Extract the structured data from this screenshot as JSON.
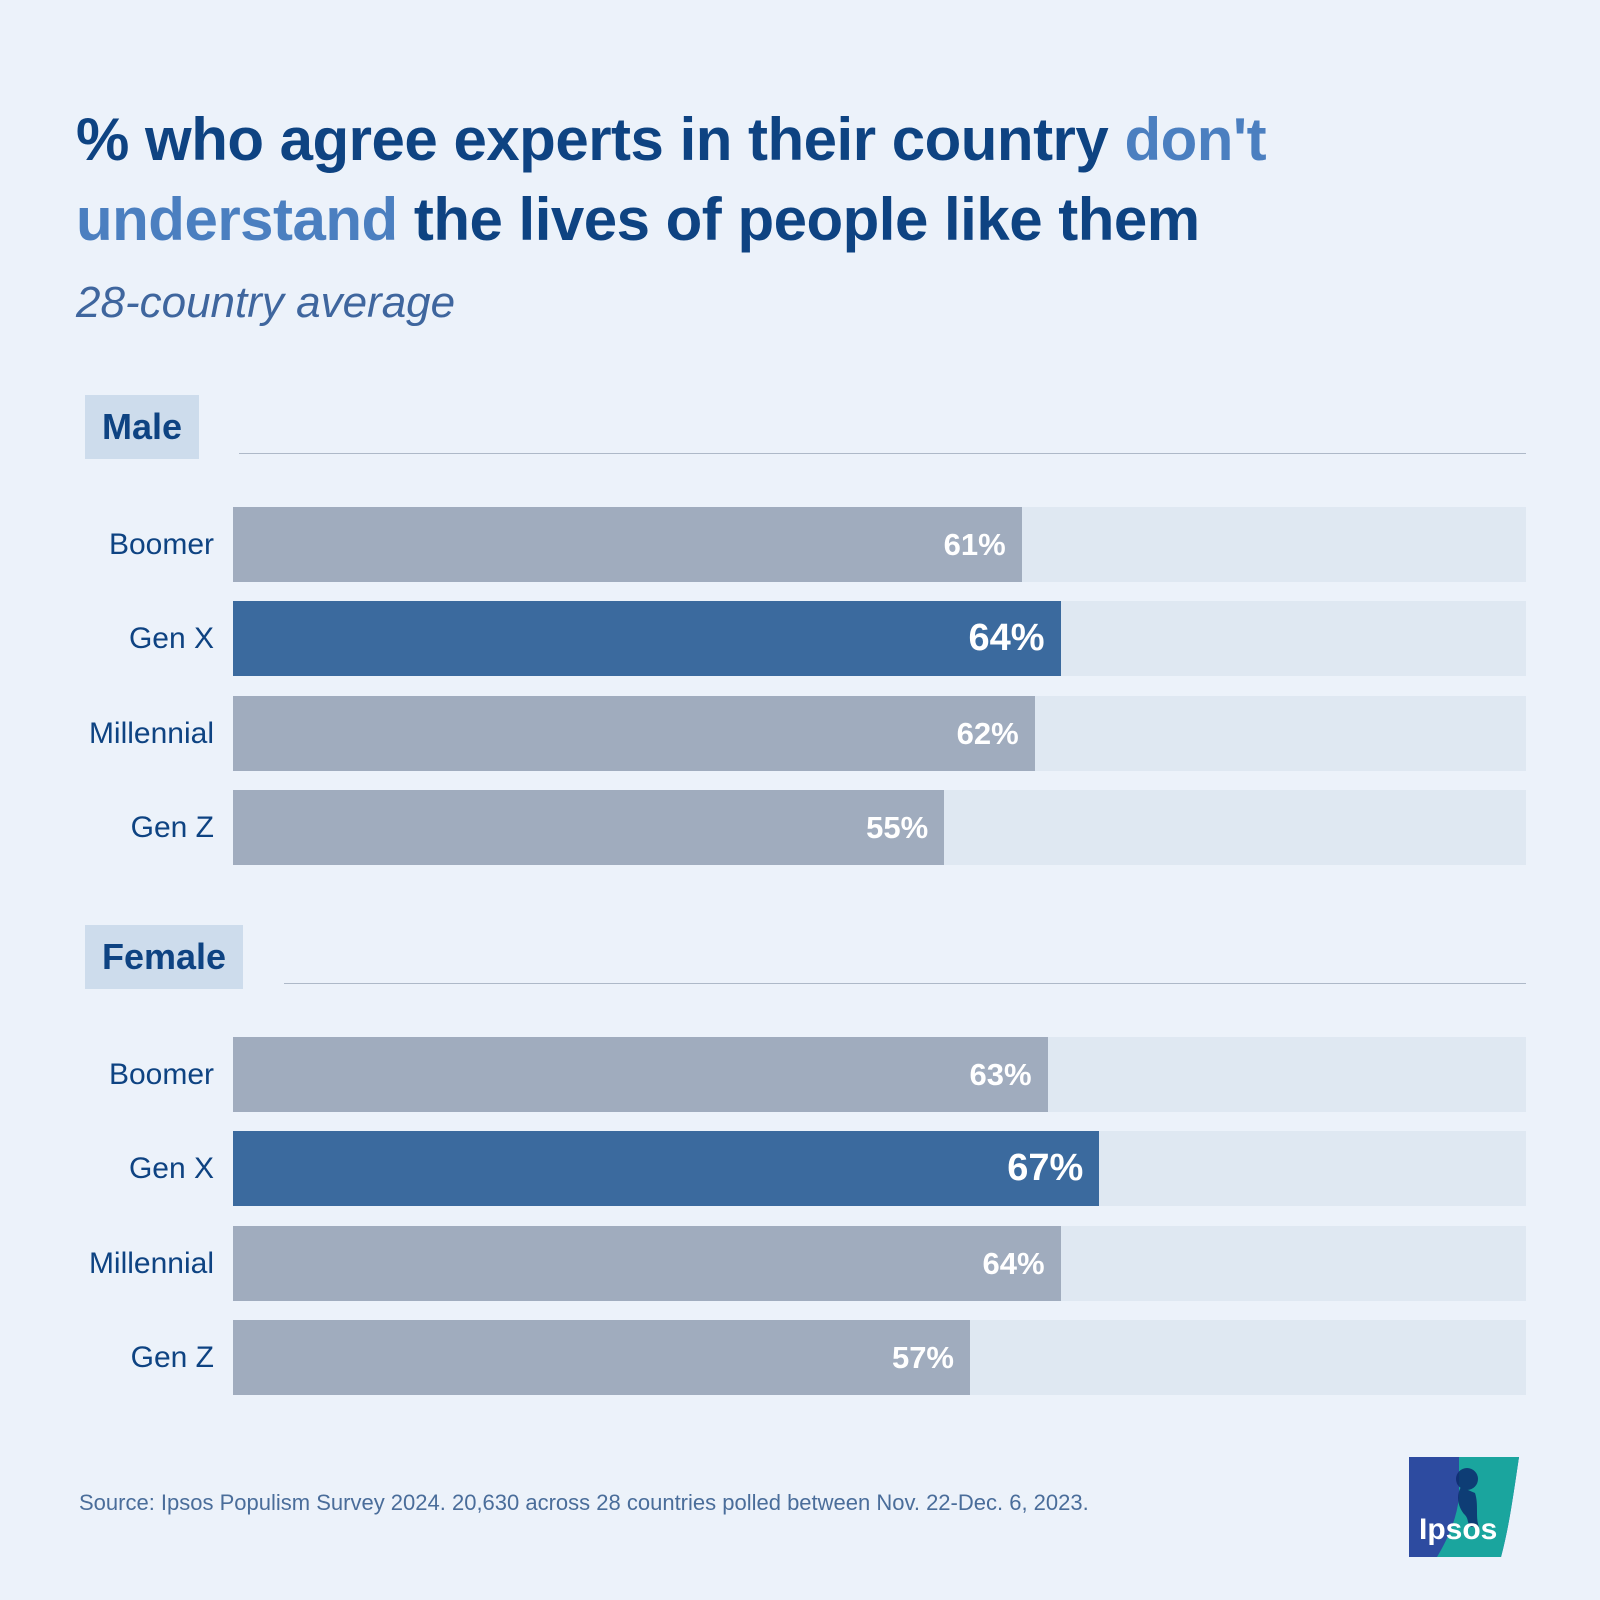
{
  "title": {
    "part1": "% who agree experts in their country ",
    "highlight": "don't understand",
    "part2": " the lives of people like them"
  },
  "subtitle": "28-country average",
  "colors": {
    "title": "#0e4382",
    "highlight": "#4b7fc0",
    "bar_default": "#a0acbe",
    "bar_highlight": "#3b6a9e",
    "track": "#dfe8f2",
    "background": "#ecf2fa"
  },
  "chart_data": {
    "type": "bar",
    "orientation": "horizontal",
    "xlim": [
      0,
      100
    ],
    "groups": [
      {
        "name": "Male",
        "categories": [
          "Boomer",
          "Gen X",
          "Millennial",
          "Gen Z"
        ],
        "values": [
          61,
          64,
          62,
          55
        ],
        "labels": [
          "61%",
          "64%",
          "62%",
          "55%"
        ],
        "highlight": [
          false,
          true,
          false,
          false
        ]
      },
      {
        "name": "Female",
        "categories": [
          "Boomer",
          "Gen X",
          "Millennial",
          "Gen Z"
        ],
        "values": [
          63,
          67,
          64,
          57
        ],
        "labels": [
          "63%",
          "67%",
          "64%",
          "57%"
        ],
        "highlight": [
          false,
          true,
          false,
          false
        ]
      }
    ]
  },
  "source": "Source: Ipsos Populism Survey 2024. 20,630 across 28 countries polled between Nov. 22-Dec. 6, 2023.",
  "logo": {
    "text": "Ipsos",
    "icon": "ipsos-logo-icon",
    "colors": [
      "#2d4ba0",
      "#1aa59e"
    ]
  }
}
